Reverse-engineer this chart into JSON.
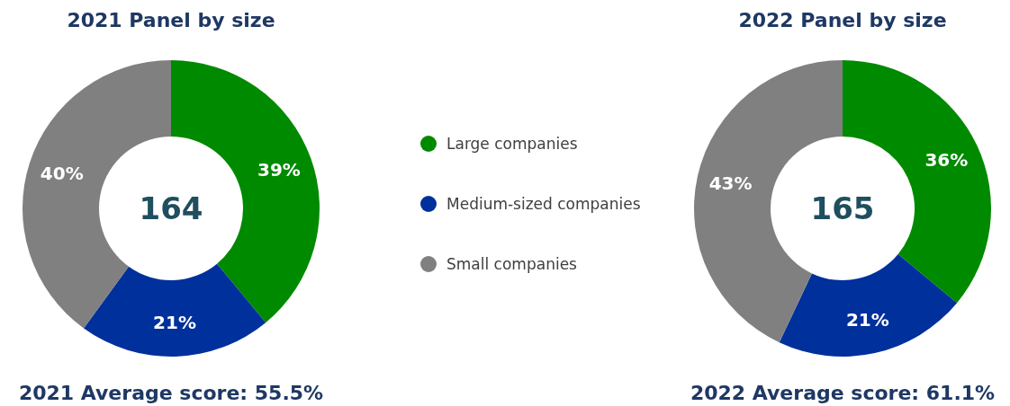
{
  "chart_data": [
    {
      "type": "donut",
      "title": "2021 Panel by size",
      "categories": [
        "Large companies",
        "Medium-sized companies",
        "Small companies"
      ],
      "values": [
        39,
        21,
        40
      ],
      "colors": [
        "#008a00",
        "#00309c",
        "#808080"
      ],
      "value_labels": [
        "39%",
        "21%",
        "40%"
      ],
      "legend": "right",
      "annotations": [
        "164",
        "2021 Average score: 55.5%"
      ]
    },
    {
      "type": "donut",
      "title": "2022 Panel by size",
      "categories": [
        null,
        null,
        null
      ],
      "values": [
        36,
        21,
        43
      ],
      "colors": [
        "#008a00",
        "#00309c",
        "#808080"
      ],
      "value_labels": [
        "36%",
        "21%",
        "43%"
      ],
      "annotations": [
        "165",
        "2022 Average score: 61.1%"
      ]
    }
  ]
}
